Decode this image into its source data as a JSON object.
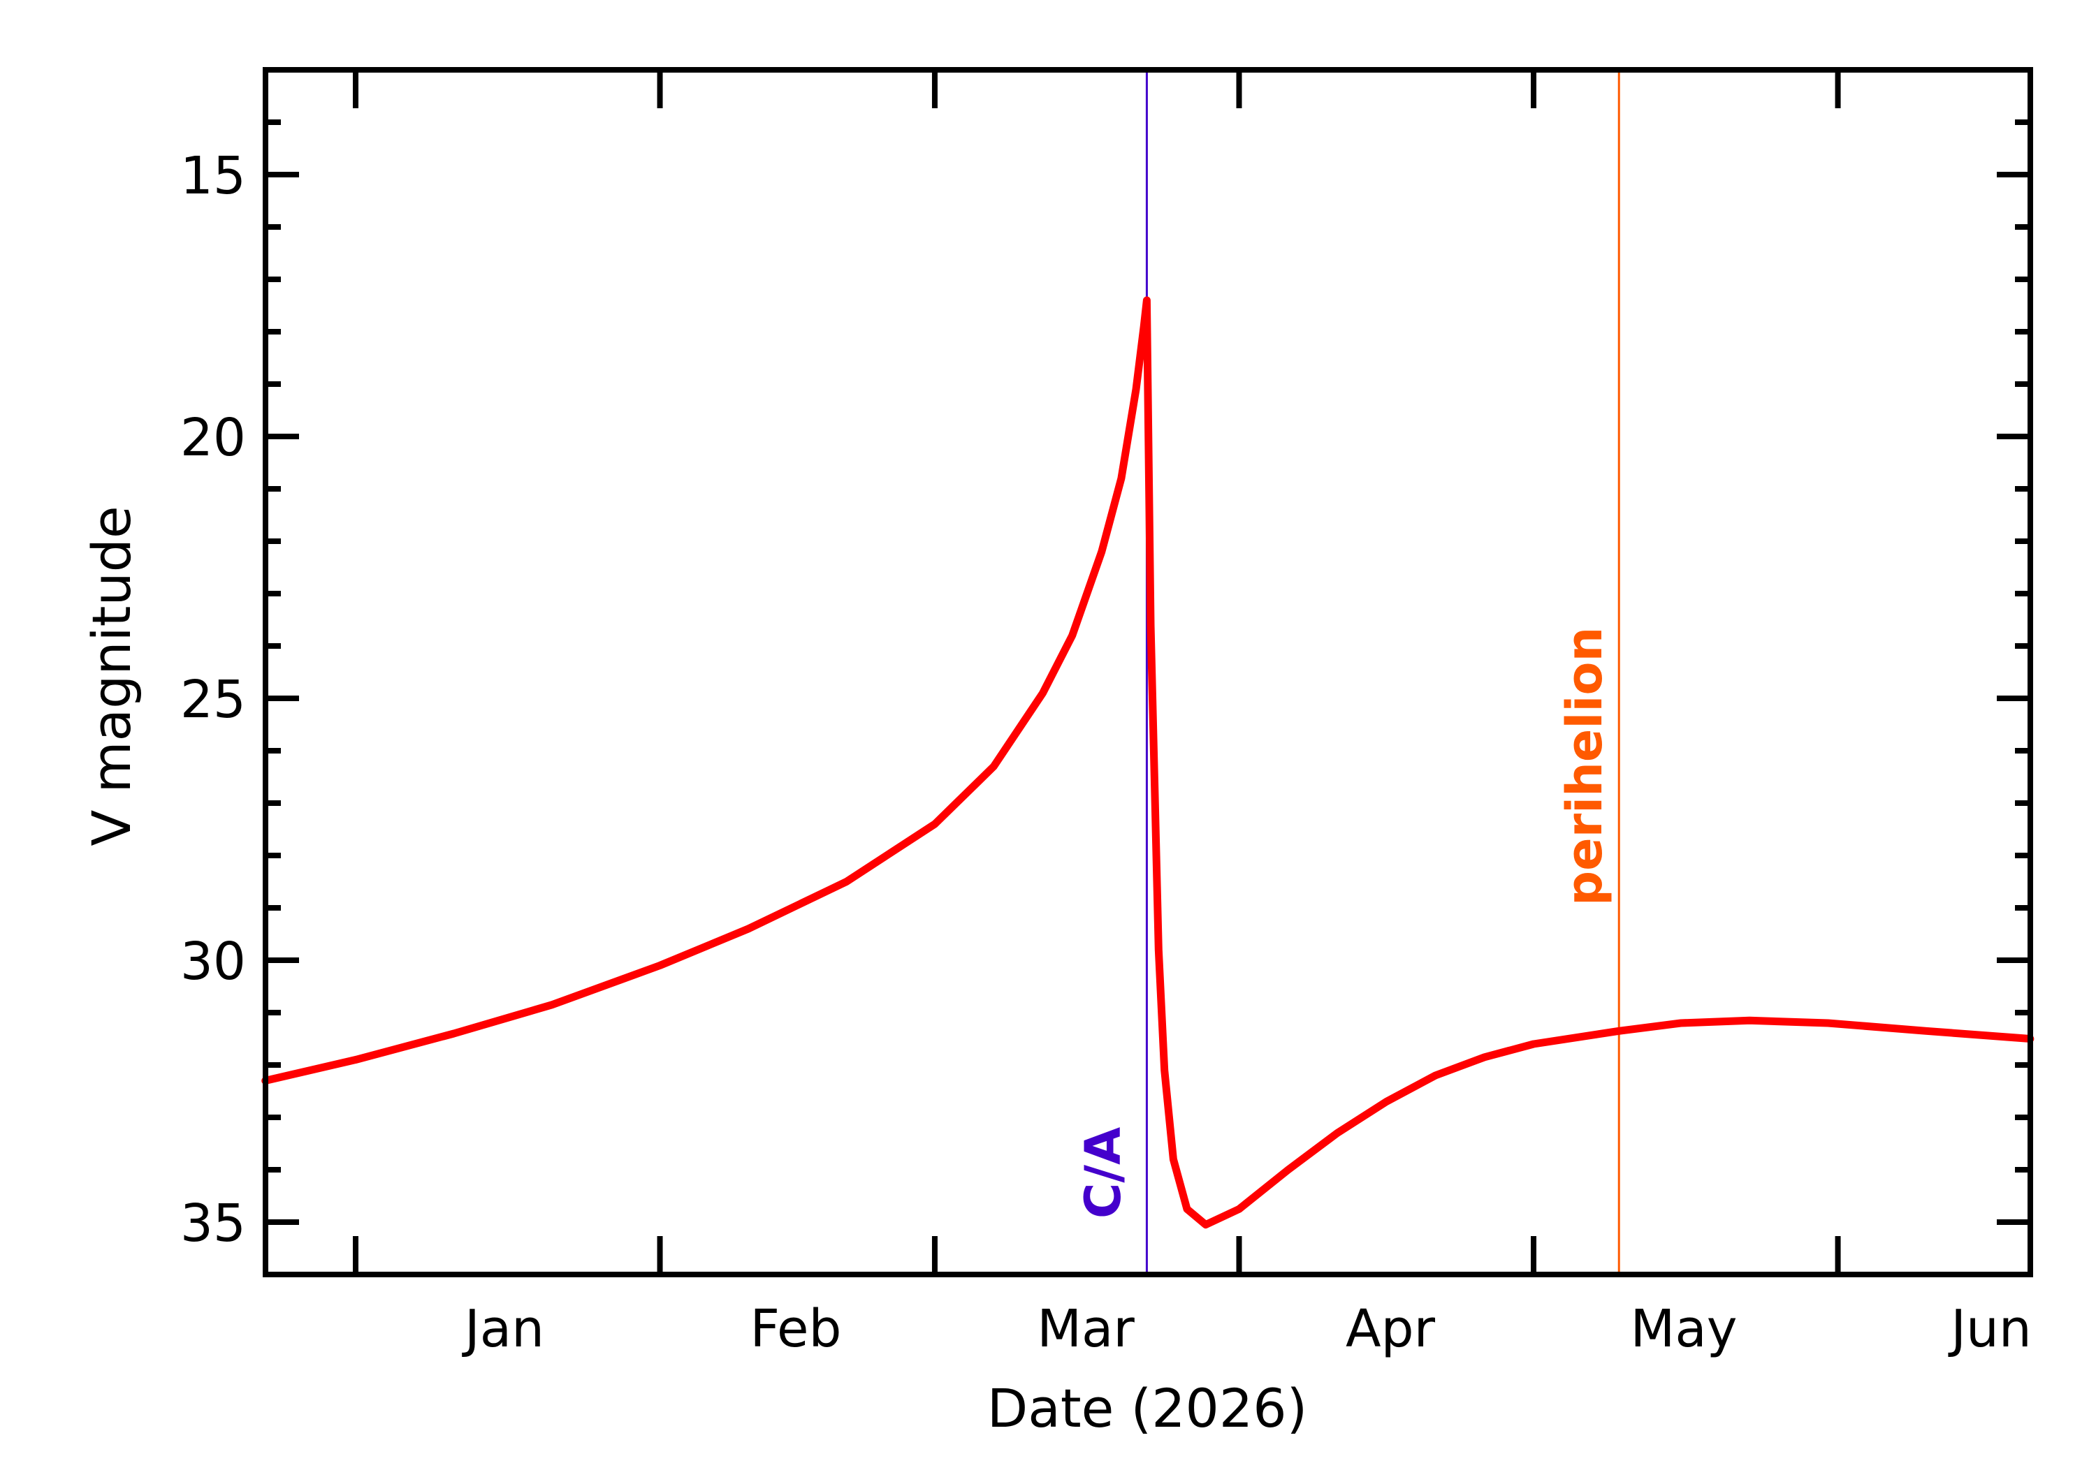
{
  "chart_data": {
    "type": "line",
    "title": "",
    "xlabel": "Date (2026)",
    "ylabel": "V magnitude",
    "x_unit": "days since 2026-01-01",
    "xlim": [
      -9.2,
      170.6
    ],
    "ylim": [
      36,
      13
    ],
    "y_inverted": true,
    "grid": false,
    "legend": null,
    "x_ticks": [
      {
        "day": 0,
        "label": ""
      },
      {
        "day": 31,
        "label": ""
      },
      {
        "day": 59,
        "label": ""
      },
      {
        "day": 90,
        "label": ""
      },
      {
        "day": 120,
        "label": ""
      },
      {
        "day": 151,
        "label": ""
      }
    ],
    "x_month_labels": [
      {
        "label": "Jan",
        "day": 15
      },
      {
        "label": "Feb",
        "day": 45
      },
      {
        "label": "Mar",
        "day": 77
      },
      {
        "label": "Apr",
        "day": 105
      },
      {
        "label": "May",
        "day": 135
      },
      {
        "label": "Jun",
        "day": 165
      }
    ],
    "y_major_ticks": [
      15,
      20,
      25,
      30,
      35
    ],
    "y_minor_step": 1,
    "series": [
      {
        "name": "V magnitude",
        "color": "#ff0000",
        "points": [
          [
            -9.2,
            32.3
          ],
          [
            0,
            31.9
          ],
          [
            10,
            31.4
          ],
          [
            20,
            30.85
          ],
          [
            31,
            30.1
          ],
          [
            40,
            29.4
          ],
          [
            50,
            28.5
          ],
          [
            59,
            27.4
          ],
          [
            65,
            26.3
          ],
          [
            70,
            24.9
          ],
          [
            73,
            23.8
          ],
          [
            76,
            22.2
          ],
          [
            78,
            20.8
          ],
          [
            79.5,
            19.1
          ],
          [
            80.3,
            17.9
          ],
          [
            80.6,
            17.4
          ],
          [
            81.0,
            23.6
          ],
          [
            81.4,
            26.7
          ],
          [
            81.8,
            29.8
          ],
          [
            82.4,
            32.1
          ],
          [
            83.3,
            33.8
          ],
          [
            84.7,
            34.75
          ],
          [
            86.6,
            35.05
          ],
          [
            90,
            34.75
          ],
          [
            95,
            34.0
          ],
          [
            100,
            33.3
          ],
          [
            105,
            32.7
          ],
          [
            110,
            32.2
          ],
          [
            115,
            31.85
          ],
          [
            120,
            31.6
          ],
          [
            128.7,
            31.35
          ],
          [
            135,
            31.2
          ],
          [
            142,
            31.15
          ],
          [
            150,
            31.2
          ],
          [
            160,
            31.35
          ],
          [
            170.6,
            31.5
          ]
        ]
      }
    ],
    "annotations": [
      {
        "label": "C/A",
        "day": 80.6,
        "color": "#4400cc",
        "type": "vline"
      },
      {
        "label": "perihelion",
        "day": 128.7,
        "color": "#ff5a00",
        "type": "vline"
      }
    ]
  },
  "labels": {
    "xlabel": "Date (2026)",
    "ylabel": "V magnitude",
    "ca": "C/A",
    "perihelion": "perihelion"
  }
}
